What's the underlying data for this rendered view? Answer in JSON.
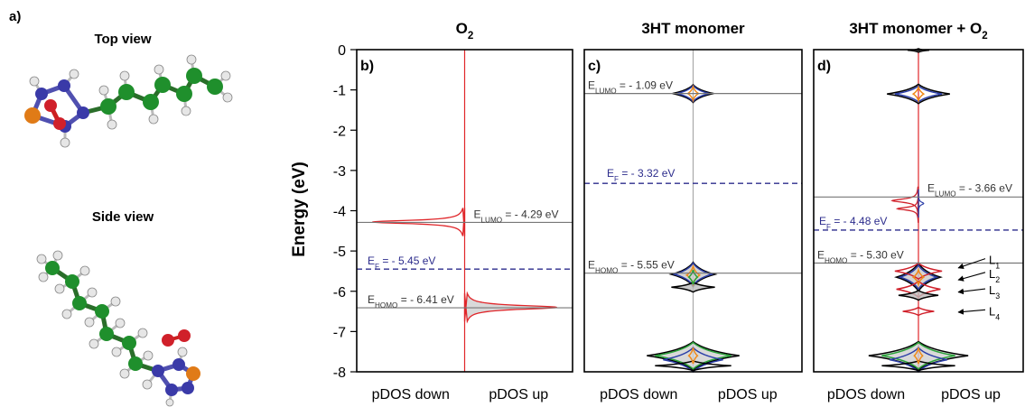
{
  "panel_a": {
    "label": "a)",
    "top_view_title": "Top view",
    "side_view_title": "Side view"
  },
  "colors": {
    "carbon": "#1f8f2c",
    "nitrogen": "#3a3aa8",
    "oxygen": "#d0202a",
    "sulfur": "#e07b17",
    "hydrogen": "#e6e6e6",
    "spin_line": "#e0262a",
    "fermi_line": "#2c2c8c",
    "total_dos": "#000000",
    "pdos_blue": "#2c3fa8",
    "pdos_green": "#2aa33a",
    "pdos_orange": "#f08a1a",
    "pdos_red": "#d0202a"
  },
  "y_axis": {
    "label": "Energy (eV)",
    "range": [
      -8,
      0
    ],
    "ticks": [
      "0",
      "-1",
      "-2",
      "-3",
      "-4",
      "-5",
      "-6",
      "-7",
      "-8"
    ]
  },
  "chart_data": [
    {
      "type": "area",
      "panel": "b)",
      "title_main": "O",
      "title_sub": "2",
      "xlabel_left": "pDOS down",
      "xlabel_right": "pDOS up",
      "levels": [
        {
          "prefix": "E",
          "sub": "LUMO",
          "text": " = - 4.29 eV",
          "energy": -4.29,
          "style": "solid"
        },
        {
          "prefix": "E",
          "sub": "F",
          "text": " = - 5.45 eV",
          "energy": -5.45,
          "style": "dashed"
        },
        {
          "prefix": "E",
          "sub": "HOMO",
          "text": " = - 6.41 eV",
          "energy": -6.41,
          "style": "solid"
        }
      ],
      "peaks": [
        {
          "energy": -4.28,
          "side": "down",
          "height": 0.95,
          "width": 0.05,
          "color": "spin_line",
          "fill": "none"
        },
        {
          "energy": -6.4,
          "side": "up",
          "height": 0.95,
          "width": 0.06,
          "color": "spin_line",
          "fill": "#d9d9d9"
        }
      ]
    },
    {
      "type": "area",
      "panel": "c)",
      "title_main": "3HT monomer",
      "title_sub": "",
      "xlabel_left": "pDOS down",
      "xlabel_right": "pDOS up",
      "levels": [
        {
          "prefix": "E",
          "sub": "LUMO",
          "text": " = - 1.09 eV",
          "energy": -1.09,
          "style": "solid"
        },
        {
          "prefix": "E",
          "sub": "F",
          "text": " = - 3.32 eV",
          "energy": -3.32,
          "style": "dashed"
        },
        {
          "prefix": "E",
          "sub": "HOMO",
          "text": " = - 5.55 eV",
          "energy": -5.55,
          "style": "solid"
        }
      ]
    },
    {
      "type": "area",
      "panel": "d)",
      "title_main": "3HT monomer + O",
      "title_sub": "2",
      "xlabel_left": "pDOS down",
      "xlabel_right": "pDOS up",
      "levels": [
        {
          "prefix": "E",
          "sub": "LUMO",
          "text": " = - 3.66 eV",
          "energy": -3.66,
          "style": "solid"
        },
        {
          "prefix": "E",
          "sub": "F",
          "text": " = - 4.48 eV",
          "energy": -4.48,
          "style": "dashed"
        },
        {
          "prefix": "E",
          "sub": "HOMO",
          "text": " = - 5.30 eV",
          "energy": -5.3,
          "style": "solid"
        }
      ],
      "arrow_labels": [
        {
          "prefix": "L",
          "sub": "1"
        },
        {
          "prefix": "L",
          "sub": "2"
        },
        {
          "prefix": "L",
          "sub": "3"
        },
        {
          "prefix": "L",
          "sub": "4"
        }
      ]
    }
  ]
}
